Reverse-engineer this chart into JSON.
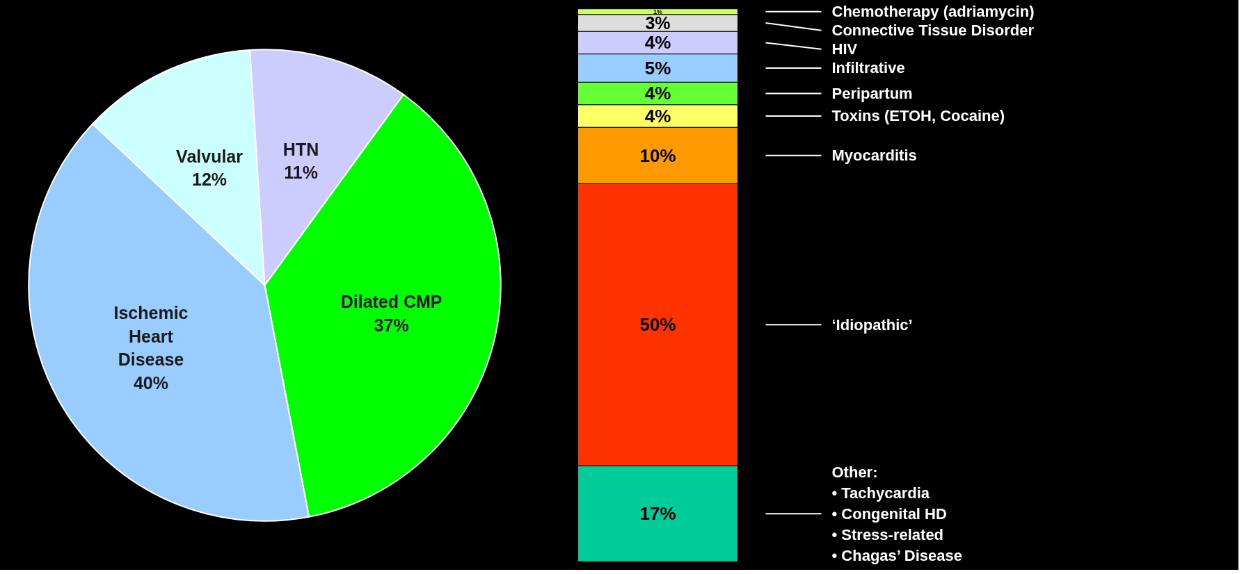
{
  "chart_data": [
    {
      "type": "pie",
      "categories": [
        "Dilated CMP",
        "Ischemic Heart Disease",
        "Valvular",
        "HTN"
      ],
      "values": [
        37,
        40,
        12,
        11
      ],
      "value_labels": [
        "37%",
        "40%",
        "12%",
        "11%"
      ],
      "colors": [
        "#00ff00",
        "#99ccff",
        "#ccffff",
        "#ccccff"
      ]
    },
    {
      "type": "bar",
      "stacked": true,
      "categories": [
        null
      ],
      "series": [
        {
          "name": "Other:\n• Tachycardia\n• Congenital HD\n• Stress-related\n• Chagas’ Disease",
          "color": "#00cc99",
          "values": [
            17
          ],
          "value_labels": [
            "17%"
          ]
        },
        {
          "name": "‘Idiopathic’",
          "color": "#ff3300",
          "values": [
            50
          ],
          "value_labels": [
            "50%"
          ]
        },
        {
          "name": "Myocarditis",
          "color": "#ff9900",
          "values": [
            10
          ],
          "value_labels": [
            "10%"
          ]
        },
        {
          "name": "Toxins (ETOH, Cocaine)",
          "color": "#ffff66",
          "values": [
            4
          ],
          "value_labels": [
            "4%"
          ]
        },
        {
          "name": "Peripartum",
          "color": "#66ff33",
          "values": [
            4
          ],
          "value_labels": [
            "4%"
          ]
        },
        {
          "name": "Infiltrative",
          "color": "#99ccff",
          "values": [
            5
          ],
          "value_labels": [
            "5%"
          ]
        },
        {
          "name": "HIV",
          "color": "#ccccff",
          "values": [
            4
          ],
          "value_labels": [
            "4%"
          ]
        },
        {
          "name": "Connective Tissue Disorder",
          "color": "#dddddd",
          "values": [
            3
          ],
          "value_labels": [
            "3%"
          ]
        },
        {
          "name": "Chemotherapy (adriamycin)",
          "color": "#ccff66",
          "values": [
            1
          ],
          "value_labels": [
            "1%"
          ]
        }
      ]
    }
  ]
}
